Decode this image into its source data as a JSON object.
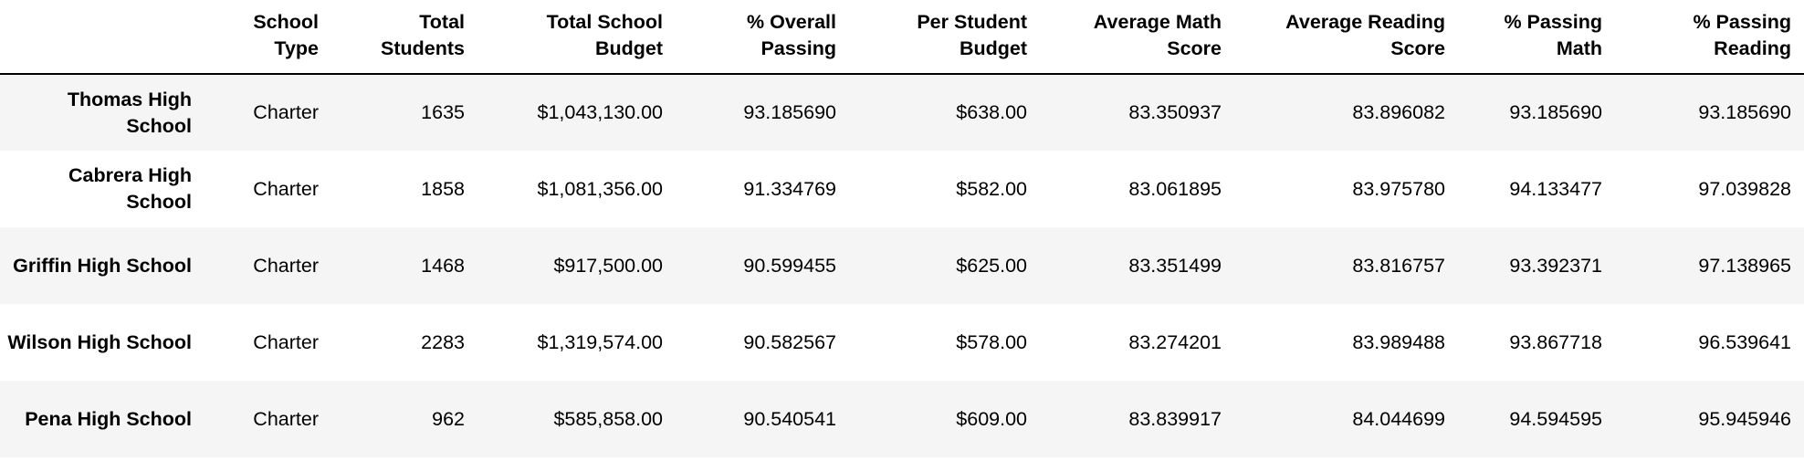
{
  "table": {
    "index_header": "",
    "columns": [
      "School Type",
      "Total Students",
      "Total School Budget",
      "% Overall Passing",
      "Per Student Budget",
      "Average Math Score",
      "Average Reading Score",
      "% Passing Math",
      "% Passing Reading"
    ],
    "rows": [
      {
        "name": "Thomas High School",
        "cells": [
          "Charter",
          "1635",
          "$1,043,130.00",
          "93.185690",
          "$638.00",
          "83.350937",
          "83.896082",
          "93.185690",
          "93.185690"
        ]
      },
      {
        "name": "Cabrera High School",
        "cells": [
          "Charter",
          "1858",
          "$1,081,356.00",
          "91.334769",
          "$582.00",
          "83.061895",
          "83.975780",
          "94.133477",
          "97.039828"
        ]
      },
      {
        "name": "Griffin High School",
        "cells": [
          "Charter",
          "1468",
          "$917,500.00",
          "90.599455",
          "$625.00",
          "83.351499",
          "83.816757",
          "93.392371",
          "97.138965"
        ]
      },
      {
        "name": "Wilson High School",
        "cells": [
          "Charter",
          "2283",
          "$1,319,574.00",
          "90.582567",
          "$578.00",
          "83.274201",
          "83.989488",
          "93.867718",
          "96.539641"
        ]
      },
      {
        "name": "Pena High School",
        "cells": [
          "Charter",
          "962",
          "$585,858.00",
          "90.540541",
          "$609.00",
          "83.839917",
          "84.044699",
          "94.594595",
          "95.945946"
        ]
      }
    ]
  },
  "colors": {
    "stripe": "#f5f5f5",
    "background": "#ffffff",
    "rule": "#000000"
  }
}
